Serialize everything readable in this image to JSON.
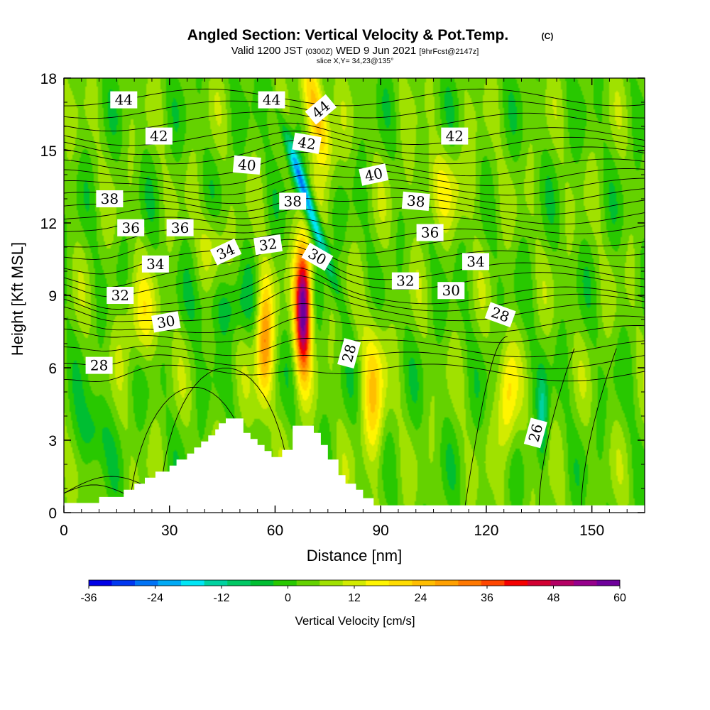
{
  "chart_data": {
    "type": "heatmap",
    "title": "Angled Section: Vertical Velocity & Pot.Temp.",
    "title_tag": "(C)",
    "subtitle": {
      "valid": "Valid 1200 JST",
      "utc": "(0300Z)",
      "date": "WED 9 Jun 2021",
      "forecast": "[9hrFcst@2147z]",
      "slice": "slice X,Y= 34,23@135°"
    },
    "xlabel": "Distance [nm]",
    "ylabel": "Height [Kft MSL]",
    "xlim": [
      0,
      165
    ],
    "ylim": [
      0,
      18
    ],
    "xticks": [
      "0",
      "30",
      "60",
      "90",
      "120",
      "150"
    ],
    "yticks": [
      "0",
      "3",
      "6",
      "9",
      "12",
      "15",
      "18"
    ],
    "colorbar": {
      "label": "Vertical Velocity [cm/s]",
      "tick_labels": [
        "-36",
        "-24",
        "-12",
        "0",
        "12",
        "24",
        "36",
        "48",
        "60"
      ],
      "range": [
        -36,
        60
      ],
      "colors": [
        "#0000e6",
        "#0037f0",
        "#0073f5",
        "#00aaf5",
        "#00e6f5",
        "#00d2a0",
        "#00c864",
        "#00be32",
        "#28c800",
        "#64d200",
        "#a0e100",
        "#d2eb00",
        "#fff500",
        "#ffdc00",
        "#ffbe00",
        "#ffa000",
        "#ff7800",
        "#ff4600",
        "#f50000",
        "#d20032",
        "#b40064",
        "#96008c",
        "#6e009b"
      ]
    },
    "field_features": [
      {
        "x": 68,
        "z": 8.5,
        "w": 60
      },
      {
        "x": 57,
        "z": 7,
        "w": 28
      },
      {
        "x": 88,
        "z": 5,
        "w": 18
      },
      {
        "x": 126,
        "z": 4.5,
        "w": 16
      },
      {
        "x": 72,
        "z": 16.5,
        "w": 26
      },
      {
        "x": 69,
        "z": 13,
        "w": -30
      },
      {
        "x": 136,
        "z": 4,
        "w": -14
      }
    ],
    "terrain": [
      [
        0,
        0.4
      ],
      [
        10,
        0.4
      ],
      [
        10,
        0.65
      ],
      [
        17,
        0.65
      ],
      [
        17,
        0.95
      ],
      [
        20,
        0.95
      ],
      [
        20,
        1.2
      ],
      [
        23,
        1.2
      ],
      [
        23,
        1.45
      ],
      [
        26,
        1.45
      ],
      [
        26,
        1.7
      ],
      [
        30,
        1.7
      ],
      [
        30,
        1.95
      ],
      [
        32,
        1.95
      ],
      [
        32,
        2.2
      ],
      [
        35,
        2.2
      ],
      [
        35,
        2.45
      ],
      [
        37,
        2.45
      ],
      [
        37,
        2.7
      ],
      [
        39,
        2.7
      ],
      [
        39,
        2.95
      ],
      [
        41,
        2.95
      ],
      [
        41,
        3.2
      ],
      [
        43,
        3.2
      ],
      [
        43,
        3.45
      ],
      [
        44,
        3.45
      ],
      [
        44,
        3.7
      ],
      [
        46,
        3.7
      ],
      [
        46,
        3.9
      ],
      [
        51,
        3.9
      ],
      [
        51,
        3.3
      ],
      [
        53,
        3.3
      ],
      [
        53,
        3.05
      ],
      [
        55,
        3.05
      ],
      [
        55,
        2.8
      ],
      [
        57,
        2.8
      ],
      [
        57,
        2.55
      ],
      [
        59,
        2.55
      ],
      [
        59,
        2.3
      ],
      [
        62,
        2.3
      ],
      [
        62,
        2.6
      ],
      [
        65,
        2.6
      ],
      [
        65,
        3.6
      ],
      [
        71,
        3.6
      ],
      [
        71,
        3.3
      ],
      [
        73,
        3.3
      ],
      [
        73,
        2.8
      ],
      [
        75,
        2.8
      ],
      [
        75,
        2.2
      ],
      [
        78,
        2.2
      ],
      [
        78,
        1.55
      ],
      [
        80,
        1.55
      ],
      [
        80,
        1.2
      ],
      [
        83,
        1.2
      ],
      [
        83,
        0.95
      ],
      [
        85,
        0.95
      ],
      [
        85,
        0.6
      ],
      [
        88,
        0.6
      ],
      [
        88,
        0.3
      ],
      [
        165,
        0.3
      ]
    ],
    "isentropes": [
      {
        "value": 26,
        "kind": "shallow",
        "x": 17,
        "label": ""
      },
      {
        "value": 27,
        "kind": "shallow",
        "x": 27,
        "label": ""
      },
      {
        "value": 28,
        "kind": "dome",
        "x": 40,
        "label": ""
      },
      {
        "value": 29,
        "kind": "dome",
        "x": 49,
        "label": ""
      },
      {
        "value": 26,
        "kind": "trough",
        "x": 139,
        "label": "26"
      },
      {
        "value": 27,
        "kind": "trough",
        "x": 151,
        "label": ""
      },
      {
        "value": 28,
        "kind": "dip",
        "x": 114,
        "label": ""
      },
      {
        "value": 28,
        "kind": "stable",
        "z": 5.8,
        "label": "28"
      },
      {
        "value": 28.3,
        "kind": "stable",
        "z": 6.3,
        "label": ""
      },
      {
        "value": 28.6,
        "kind": "stable",
        "z": 6.8,
        "label": ""
      },
      {
        "value": 29.2,
        "kind": "stable",
        "z": 7.4,
        "label": ""
      },
      {
        "value": 30,
        "kind": "stable",
        "z": 7.8,
        "label": "30"
      },
      {
        "value": 30.7,
        "kind": "stable",
        "z": 8.3,
        "label": ""
      },
      {
        "value": 31.3,
        "kind": "stable",
        "z": 8.7,
        "label": ""
      },
      {
        "value": 32,
        "kind": "stable",
        "z": 9.0,
        "label": "32"
      },
      {
        "value": 32.7,
        "kind": "stable",
        "z": 9.6,
        "label": ""
      },
      {
        "value": 33.3,
        "kind": "stable",
        "z": 10.0,
        "label": ""
      },
      {
        "value": 34,
        "kind": "stable",
        "z": 10.5,
        "label": "34"
      },
      {
        "value": 34.7,
        "kind": "stable",
        "z": 11.0,
        "label": ""
      },
      {
        "value": 35.3,
        "kind": "stable",
        "z": 11.4,
        "label": ""
      },
      {
        "value": 36,
        "kind": "stable",
        "z": 11.9,
        "label": "36"
      },
      {
        "value": 36.7,
        "kind": "stable",
        "z": 12.3,
        "label": ""
      },
      {
        "value": 37.3,
        "kind": "stable",
        "z": 12.7,
        "label": ""
      },
      {
        "value": 38,
        "kind": "stable",
        "z": 13.1,
        "label": "38"
      },
      {
        "value": 38.7,
        "kind": "stable",
        "z": 13.5,
        "label": ""
      },
      {
        "value": 39.3,
        "kind": "stable",
        "z": 13.9,
        "label": ""
      },
      {
        "value": 40,
        "kind": "stable",
        "z": 14.3,
        "label": "40"
      },
      {
        "value": 40.7,
        "kind": "stable",
        "z": 14.8,
        "label": ""
      },
      {
        "value": 41.3,
        "kind": "stable",
        "z": 15.2,
        "label": ""
      },
      {
        "value": 42,
        "kind": "stable",
        "z": 15.6,
        "label": "42"
      },
      {
        "value": 42.7,
        "kind": "stable",
        "z": 16.2,
        "label": ""
      },
      {
        "value": 43.3,
        "kind": "stable",
        "z": 16.7,
        "label": ""
      },
      {
        "value": 44,
        "kind": "stable",
        "z": 17.2,
        "label": "44"
      }
    ],
    "contour_labels": [
      {
        "text": "44",
        "x": 17,
        "z": 17.1,
        "angle": 0
      },
      {
        "text": "44",
        "x": 59,
        "z": 17.1,
        "angle": 0
      },
      {
        "text": "44",
        "x": 73,
        "z": 16.7,
        "angle": -40
      },
      {
        "text": "42",
        "x": 27,
        "z": 15.6,
        "angle": 0
      },
      {
        "text": "42",
        "x": 111,
        "z": 15.6,
        "angle": 0
      },
      {
        "text": "42",
        "x": 69,
        "z": 15.3,
        "angle": 10
      },
      {
        "text": "40",
        "x": 52,
        "z": 14.4,
        "angle": 5
      },
      {
        "text": "40",
        "x": 88,
        "z": 14.0,
        "angle": -12
      },
      {
        "text": "38",
        "x": 13,
        "z": 13.0,
        "angle": 0
      },
      {
        "text": "38",
        "x": 65,
        "z": 12.9,
        "angle": 0
      },
      {
        "text": "38",
        "x": 100,
        "z": 12.9,
        "angle": 5
      },
      {
        "text": "36",
        "x": 19,
        "z": 11.8,
        "angle": 0
      },
      {
        "text": "36",
        "x": 33,
        "z": 11.8,
        "angle": 0
      },
      {
        "text": "36",
        "x": 104,
        "z": 11.6,
        "angle": 0
      },
      {
        "text": "34",
        "x": 26,
        "z": 10.3,
        "angle": 0
      },
      {
        "text": "34",
        "x": 46,
        "z": 10.8,
        "angle": -25
      },
      {
        "text": "34",
        "x": 117,
        "z": 10.4,
        "angle": 0
      },
      {
        "text": "32",
        "x": 58,
        "z": 11.1,
        "angle": -8
      },
      {
        "text": "32",
        "x": 16,
        "z": 9.0,
        "angle": 0
      },
      {
        "text": "32",
        "x": 97,
        "z": 9.6,
        "angle": 0
      },
      {
        "text": "30",
        "x": 72,
        "z": 10.6,
        "angle": 30
      },
      {
        "text": "30",
        "x": 29,
        "z": 7.9,
        "angle": -10
      },
      {
        "text": "30",
        "x": 110,
        "z": 9.2,
        "angle": 0
      },
      {
        "text": "28",
        "x": 10,
        "z": 6.1,
        "angle": 0
      },
      {
        "text": "28",
        "x": 81,
        "z": 6.6,
        "angle": -75
      },
      {
        "text": "28",
        "x": 124,
        "z": 8.2,
        "angle": 20
      },
      {
        "text": "26",
        "x": 134,
        "z": 3.3,
        "angle": -75
      }
    ]
  }
}
